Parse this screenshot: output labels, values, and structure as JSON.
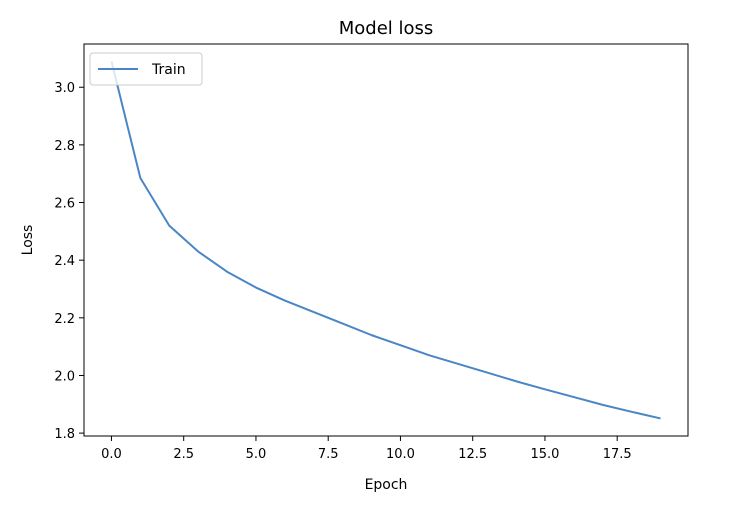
{
  "chart_data": {
    "type": "line",
    "title": "Model loss",
    "xlabel": "Epoch",
    "ylabel": "Loss",
    "xlim": [
      -0.95,
      19.95
    ],
    "ylim": [
      1.79,
      3.15
    ],
    "x_ticks": [
      0.0,
      2.5,
      5.0,
      7.5,
      10.0,
      12.5,
      15.0,
      17.5
    ],
    "x_tick_labels": [
      "0.0",
      "2.5",
      "5.0",
      "7.5",
      "10.0",
      "12.5",
      "15.0",
      "17.5"
    ],
    "y_ticks": [
      1.8,
      2.0,
      2.2,
      2.4,
      2.6,
      2.8,
      3.0
    ],
    "y_tick_labels": [
      "1.8",
      "2.0",
      "2.2",
      "2.4",
      "2.6",
      "2.8",
      "3.0"
    ],
    "grid": false,
    "legend_position": "top-left",
    "series": [
      {
        "name": "Train",
        "color": "#4a86c5",
        "x": [
          0,
          1,
          2,
          3,
          4,
          5,
          6,
          7,
          8,
          9,
          10,
          11,
          12,
          13,
          14,
          15,
          16,
          17,
          18,
          19
        ],
        "values": [
          3.09,
          2.685,
          2.52,
          2.43,
          2.36,
          2.305,
          2.26,
          2.22,
          2.18,
          2.14,
          2.105,
          2.07,
          2.04,
          2.01,
          1.98,
          1.952,
          1.925,
          1.898,
          1.874,
          1.851
        ]
      }
    ]
  }
}
